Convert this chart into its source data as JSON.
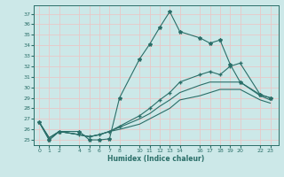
{
  "xlabel": "Humidex (Indice chaleur)",
  "ylabel": "",
  "bg_color": "#cce8e8",
  "grid_color": "#e8c8c8",
  "line_color": "#2a6e68",
  "xticks": [
    0,
    1,
    2,
    4,
    5,
    6,
    7,
    8,
    10,
    11,
    12,
    13,
    14,
    16,
    17,
    18,
    19,
    20,
    22,
    23
  ],
  "yticks": [
    25,
    26,
    27,
    28,
    29,
    30,
    31,
    32,
    33,
    34,
    35,
    36,
    37
  ],
  "ylim": [
    24.5,
    37.8
  ],
  "xlim": [
    -0.5,
    23.8
  ],
  "line1_x": [
    0,
    1,
    2,
    4,
    5,
    6,
    7,
    8,
    10,
    11,
    12,
    13,
    14,
    16,
    17,
    18,
    19,
    20,
    22,
    23
  ],
  "line1_y": [
    26.7,
    25.0,
    25.8,
    25.8,
    25.0,
    25.0,
    25.1,
    29.0,
    32.7,
    34.1,
    35.7,
    37.2,
    35.3,
    34.7,
    34.2,
    34.5,
    32.2,
    30.5,
    29.3,
    29.0
  ],
  "line2_x": [
    0,
    1,
    2,
    4,
    5,
    6,
    7,
    8,
    10,
    11,
    12,
    13,
    14,
    16,
    17,
    18,
    19,
    20,
    22,
    23
  ],
  "line2_y": [
    26.7,
    25.0,
    25.8,
    25.5,
    25.3,
    25.5,
    25.8,
    26.3,
    27.3,
    28.0,
    28.8,
    29.5,
    30.5,
    31.2,
    31.5,
    31.2,
    32.0,
    32.3,
    29.3,
    29.0
  ],
  "line3_x": [
    0,
    1,
    2,
    4,
    5,
    6,
    7,
    8,
    10,
    11,
    12,
    13,
    14,
    16,
    17,
    18,
    19,
    20,
    22,
    23
  ],
  "line3_y": [
    26.7,
    25.2,
    25.8,
    25.5,
    25.3,
    25.5,
    25.8,
    26.2,
    27.0,
    27.5,
    28.2,
    28.8,
    29.5,
    30.2,
    30.5,
    30.5,
    30.5,
    30.5,
    29.2,
    28.8
  ],
  "line4_x": [
    0,
    1,
    2,
    4,
    5,
    6,
    7,
    8,
    10,
    11,
    12,
    13,
    14,
    16,
    17,
    18,
    19,
    20,
    22,
    23
  ],
  "line4_y": [
    26.7,
    25.2,
    25.8,
    25.5,
    25.3,
    25.5,
    25.8,
    26.0,
    26.5,
    27.0,
    27.5,
    28.0,
    28.8,
    29.2,
    29.5,
    29.8,
    29.8,
    29.8,
    28.8,
    28.5
  ]
}
